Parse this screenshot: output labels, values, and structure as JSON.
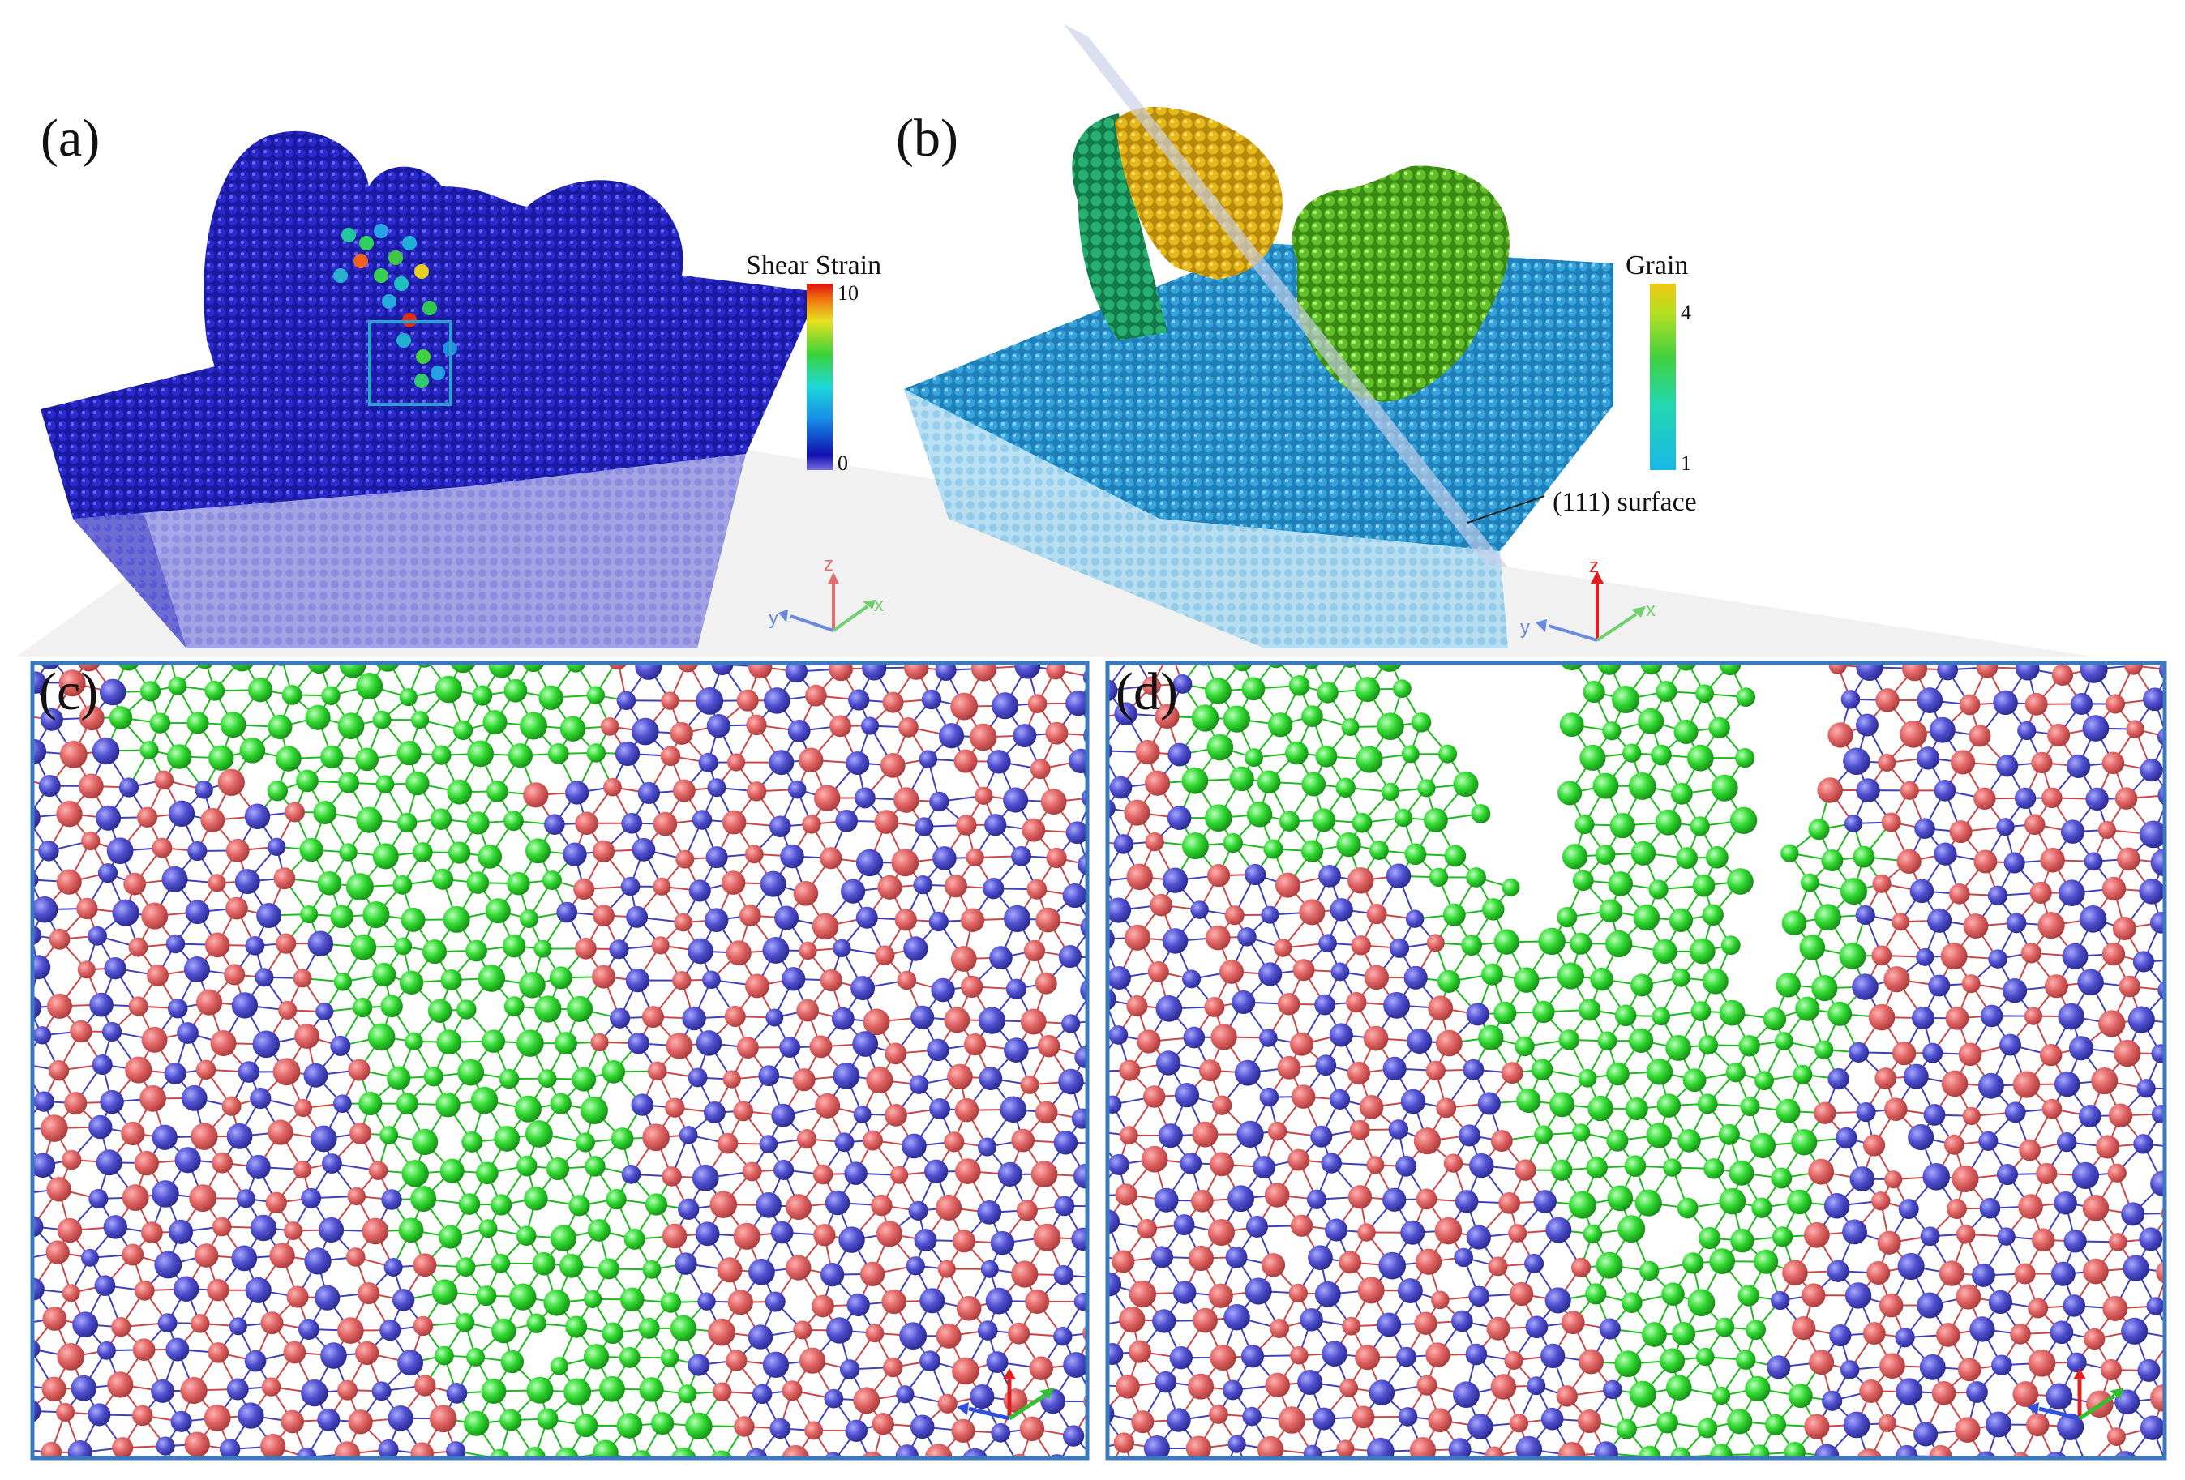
{
  "figure": {
    "panels": [
      {
        "id": "a",
        "label": "(a)"
      },
      {
        "id": "b",
        "label": "(b)"
      },
      {
        "id": "c",
        "label": "(c)"
      },
      {
        "id": "d",
        "label": "(d)"
      }
    ],
    "colorbar_a": {
      "title": "Shear Strain",
      "max": "10",
      "min": "0"
    },
    "colorbar_b": {
      "title": "Grain",
      "max": "4",
      "min": "1"
    },
    "annotation_b": "(111) surface",
    "axes": {
      "x": "x",
      "y": "y",
      "z": "z"
    },
    "colors": {
      "strain_low": "#1a1aa8",
      "grain_base": "#2f9ed6",
      "grain_yellow": "#e2b315",
      "grain_green": "#5fc42a",
      "atom_red": "#e06060",
      "atom_blue": "#4848c8",
      "atom_green": "#2fd82f",
      "frame": "#3a78c0"
    }
  }
}
